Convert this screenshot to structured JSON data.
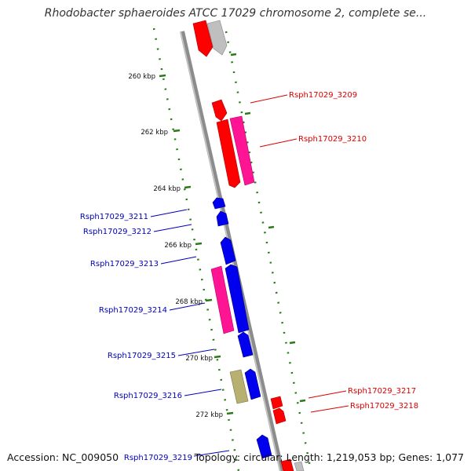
{
  "header": {
    "title": "Rhodobacter sphaeroides ATCC 17029 chromosome 2, complete se..."
  },
  "footer": {
    "accession": "Accession: NC_009050",
    "summary": "Topology: circular; Length: 1,219,053 bp; Genes: 1,077"
  },
  "colors": {
    "backbone": "#8c8c8c",
    "tick": "#2a7a1a",
    "gene_red": "#ff0000",
    "gene_blue": "#0000ee",
    "gene_pink": "#ff1493",
    "gene_khaki": "#b8b070",
    "gene_grey": "#bfbfbf",
    "label_red": "#dd0000",
    "label_blue": "#0000bb"
  },
  "scale_labels": [
    "260 kbp",
    "262 kbp",
    "264 kbp",
    "266 kbp",
    "268 kbp",
    "270 kbp",
    "272 kbp"
  ],
  "gene_labels": [
    {
      "text": "Rsph17029_3209",
      "side": "right"
    },
    {
      "text": "Rsph17029_3210",
      "side": "right"
    },
    {
      "text": "Rsph17029_3211",
      "side": "left"
    },
    {
      "text": "Rsph17029_3212",
      "side": "left"
    },
    {
      "text": "Rsph17029_3213",
      "side": "left"
    },
    {
      "text": "Rsph17029_3214",
      "side": "left"
    },
    {
      "text": "Rsph17029_3215",
      "side": "left"
    },
    {
      "text": "Rsph17029_3216",
      "side": "left"
    },
    {
      "text": "Rsph17029_3217",
      "side": "right"
    },
    {
      "text": "Rsph17029_3218",
      "side": "right"
    },
    {
      "text": "Rsph17029_3219",
      "side": "left"
    }
  ]
}
